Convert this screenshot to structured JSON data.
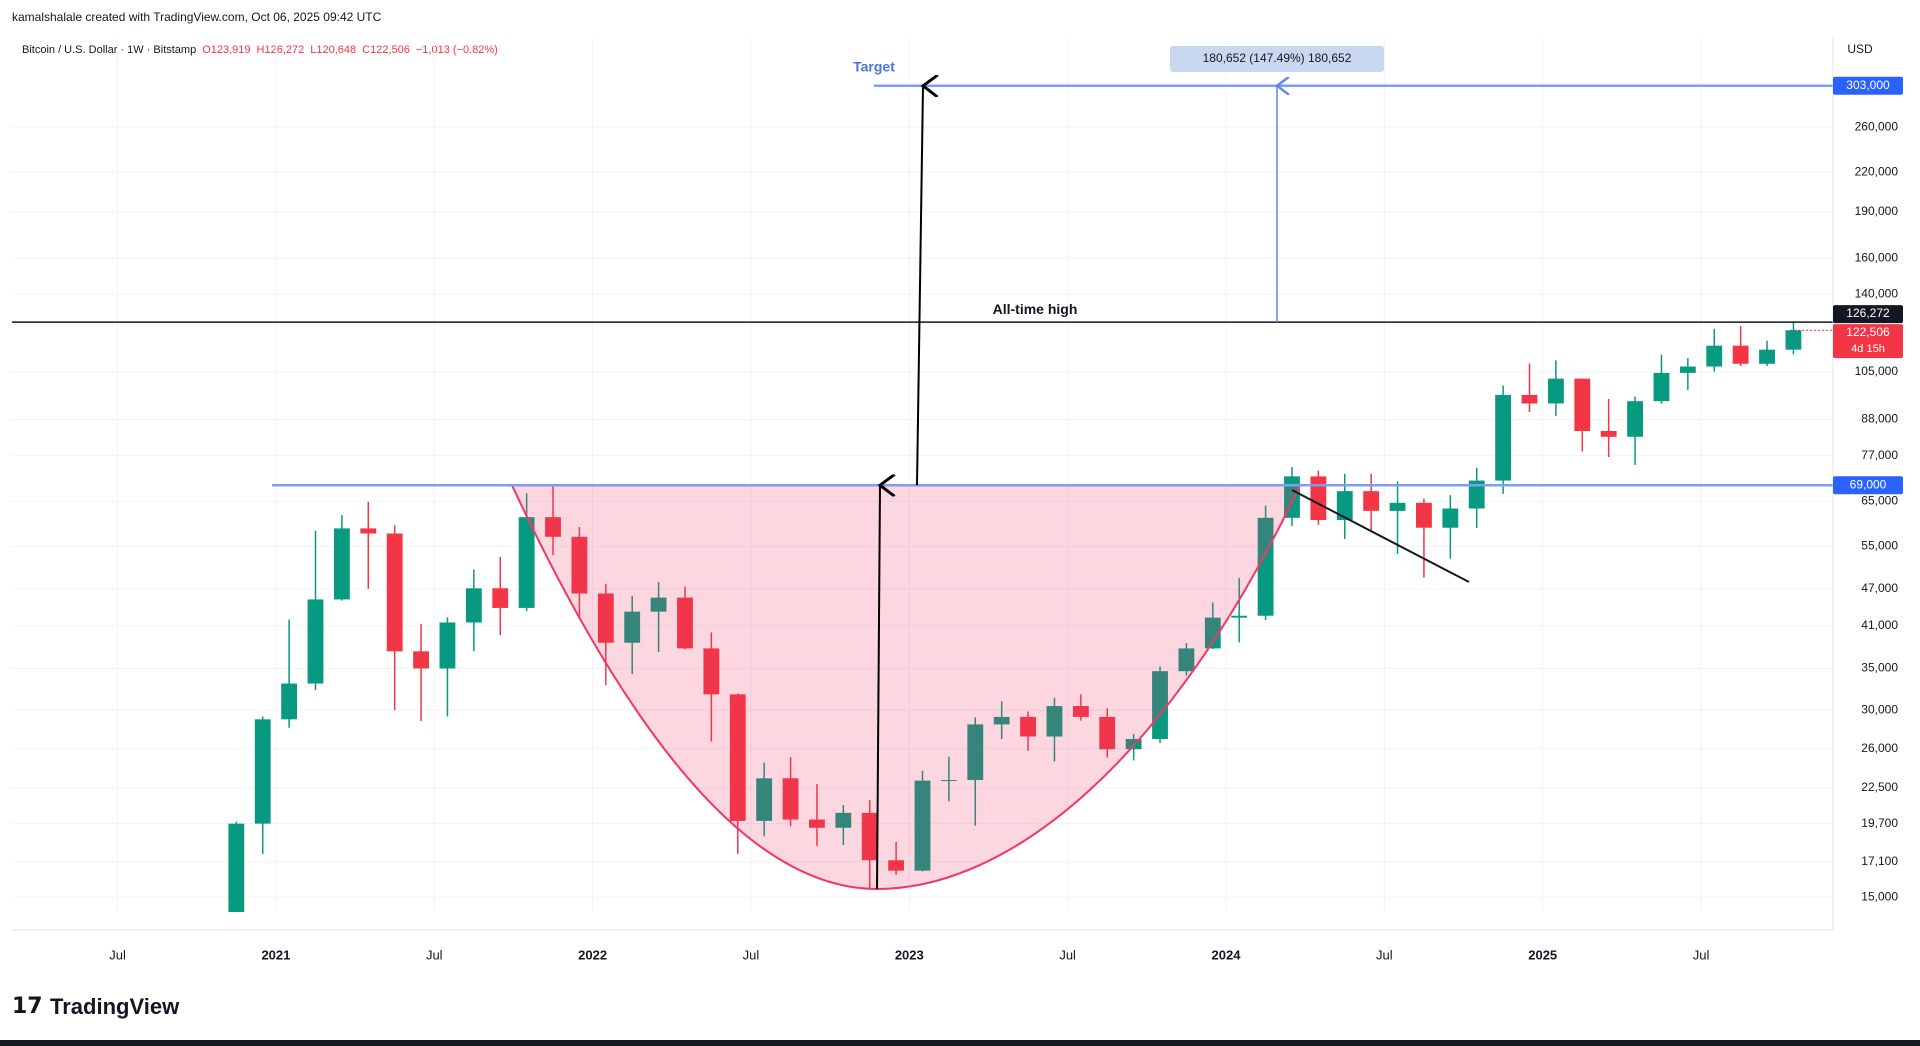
{
  "chart_data": {
    "type": "candlestick",
    "attribution": "kamalshalale created with TradingView.com, Oct 06, 2025 09:42 UTC",
    "symbol": "Bitcoin / U.S. Dollar · 1W · Bitstamp",
    "ohlc_legend": [
      "O123,919",
      "H126,272",
      "L120,648",
      "C122,506",
      "−1,013 (−0.82%)"
    ],
    "currency": "USD",
    "brand": "TradingView",
    "x": [
      "2020-11",
      "2020-12",
      "2021-01",
      "2021-02",
      "2021-03",
      "2021-04",
      "2021-05",
      "2021-06",
      "2021-07",
      "2021-08",
      "2021-09",
      "2021-10",
      "2021-11",
      "2021-12",
      "2022-01",
      "2022-02",
      "2022-03",
      "2022-04",
      "2022-05",
      "2022-06",
      "2022-07",
      "2022-08",
      "2022-09",
      "2022-10",
      "2022-11",
      "2022-12",
      "2023-01",
      "2023-02",
      "2023-03",
      "2023-04",
      "2023-05",
      "2023-06",
      "2023-07",
      "2023-08",
      "2023-09",
      "2023-10",
      "2023-11",
      "2023-12",
      "2024-01",
      "2024-02",
      "2024-03",
      "2024-04",
      "2024-05",
      "2024-06",
      "2024-07",
      "2024-08",
      "2024-09",
      "2024-10",
      "2024-11",
      "2024-12",
      "2025-01",
      "2025-02",
      "2025-03",
      "2025-04",
      "2025-05",
      "2025-06",
      "2025-07",
      "2025-08",
      "2025-09",
      "2025-10"
    ],
    "open": [
      13800,
      19700,
      28990,
      33100,
      45200,
      58800,
      57700,
      37300,
      35000,
      41500,
      47100,
      43800,
      61300,
      57000,
      46200,
      38500,
      43200,
      45500,
      37700,
      31800,
      19900,
      23300,
      20000,
      19400,
      20500,
      17200,
      16550,
      23100,
      23150,
      28450,
      29250,
      27200,
      30450,
      29250,
      25950,
      26950,
      34650,
      37700,
      42250,
      42550,
      61150,
      71300,
      60650,
      67500,
      62750,
      64650,
      58950,
      63300,
      70200,
      96400,
      93400,
      102400,
      84350,
      82550,
      94200,
      104600,
      107100,
      115700,
      108200,
      114000
    ],
    "high": [
      19850,
      29300,
      41950,
      58300,
      61800,
      64900,
      59500,
      41300,
      42300,
      50500,
      52900,
      67000,
      69000,
      59100,
      47900,
      45800,
      48200,
      47400,
      40000,
      31900,
      24700,
      25200,
      22800,
      21100,
      21500,
      18400,
      23950,
      25250,
      29200,
      31000,
      29850,
      31400,
      31800,
      30200,
      27450,
      35250,
      38450,
      44700,
      48950,
      64000,
      73800,
      72800,
      71950,
      71950,
      70000,
      65650,
      66500,
      73600,
      99800,
      108300,
      109600,
      102500,
      95000,
      95800,
      111900,
      110500,
      123200,
      124500,
      117900,
      126272
    ],
    "low": [
      13200,
      17600,
      28100,
      32300,
      45000,
      47000,
      30000,
      28800,
      29300,
      37300,
      39600,
      43300,
      53300,
      42000,
      32900,
      34300,
      37200,
      37600,
      26700,
      17600,
      18800,
      19500,
      18150,
      18200,
      15500,
      16300,
      16500,
      21400,
      19550,
      26950,
      25800,
      24800,
      28850,
      25150,
      24900,
      26550,
      34100,
      37600,
      38550,
      41900,
      59300,
      59600,
      56550,
      58400,
      53500,
      49000,
      52550,
      58900,
      66800,
      90500,
      89200,
      78200,
      76600,
      74400,
      93400,
      98200,
      105100,
      107300,
      107300,
      112000
    ],
    "close": [
      19700,
      28990,
      33100,
      45200,
      58800,
      57700,
      37300,
      35000,
      41500,
      47100,
      43800,
      61300,
      57000,
      46200,
      38500,
      43200,
      45500,
      37700,
      31800,
      19900,
      23300,
      20000,
      19400,
      20500,
      17200,
      16550,
      23100,
      23150,
      28450,
      29250,
      27200,
      30450,
      29250,
      25950,
      26950,
      34650,
      37700,
      42250,
      42550,
      61150,
      71300,
      60650,
      67500,
      62750,
      64650,
      58950,
      63300,
      70200,
      96400,
      93400,
      102400,
      84350,
      82550,
      94200,
      104600,
      107100,
      115700,
      108200,
      114000,
      122506
    ],
    "up_color": "#089981",
    "down_color": "#f23645",
    "log_scale": true,
    "grid": true,
    "xlim": [
      "2020-03",
      "2025-12"
    ],
    "xticks": [
      {
        "value": "2020-07",
        "label": "Jul"
      },
      {
        "value": "2021-01",
        "label": "2021"
      },
      {
        "value": "2021-07",
        "label": "Jul"
      },
      {
        "value": "2022-01",
        "label": "2022"
      },
      {
        "value": "2022-07",
        "label": "Jul"
      },
      {
        "value": "2023-01",
        "label": "2023"
      },
      {
        "value": "2023-07",
        "label": "Jul"
      },
      {
        "value": "2024-01",
        "label": "2024"
      },
      {
        "value": "2024-07",
        "label": "Jul"
      },
      {
        "value": "2025-01",
        "label": "2025"
      },
      {
        "value": "2025-07",
        "label": "Jul"
      }
    ],
    "ylim": [
      14200,
      363000
    ],
    "yticks": [
      {
        "value": 15000,
        "label": "15,000"
      },
      {
        "value": 17100,
        "label": "17,100"
      },
      {
        "value": 19700,
        "label": "19,700"
      },
      {
        "value": 22500,
        "label": "22,500"
      },
      {
        "value": 26000,
        "label": "26,000"
      },
      {
        "value": 30000,
        "label": "30,000"
      },
      {
        "value": 35000,
        "label": "35,000"
      },
      {
        "value": 41000,
        "label": "41,000"
      },
      {
        "value": 47000,
        "label": "47,000"
      },
      {
        "value": 55000,
        "label": "55,000"
      },
      {
        "value": 65000,
        "label": "65,000"
      },
      {
        "value": 77000,
        "label": "77,000"
      },
      {
        "value": 88000,
        "label": "88,000"
      },
      {
        "value": 105000,
        "label": "105,000"
      },
      {
        "value": 140000,
        "label": "140,000"
      },
      {
        "value": 160000,
        "label": "160,000"
      },
      {
        "value": 190000,
        "label": "190,000"
      },
      {
        "value": 220000,
        "label": "220,000"
      },
      {
        "value": 260000,
        "label": "260,000"
      }
    ],
    "target_label": "Target",
    "target_price": {
      "value": 303000,
      "label": "303,000"
    },
    "measure_label": "180,652 (147.49%) 180,652",
    "ath_label": "All-time high",
    "ath_price": {
      "value": 126272,
      "label": "126,272"
    },
    "last_price": {
      "value": 122506,
      "label": "122,506"
    },
    "countdown": "4d 15h",
    "breakout_price": {
      "value": 69000,
      "label": "69,000"
    }
  }
}
